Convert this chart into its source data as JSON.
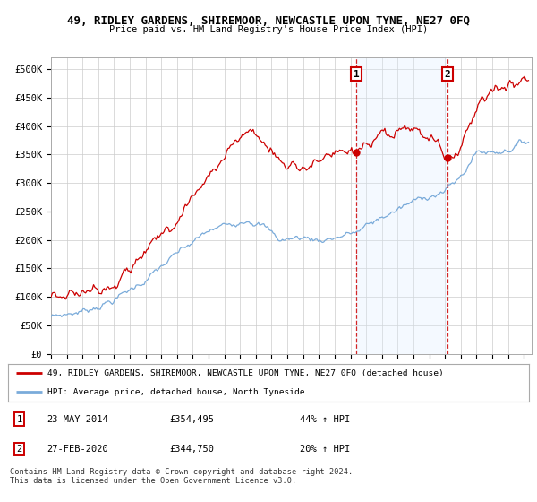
{
  "title_line1": "49, RIDLEY GARDENS, SHIREMOOR, NEWCASTLE UPON TYNE, NE27 0FQ",
  "title_line2": "Price paid vs. HM Land Registry's House Price Index (HPI)",
  "ylabel_ticks": [
    "£0",
    "£50K",
    "£100K",
    "£150K",
    "£200K",
    "£250K",
    "£300K",
    "£350K",
    "£400K",
    "£450K",
    "£500K"
  ],
  "ytick_values": [
    0,
    50000,
    100000,
    150000,
    200000,
    250000,
    300000,
    350000,
    400000,
    450000,
    500000
  ],
  "ylim": [
    0,
    520000
  ],
  "xlim_start": 1995.0,
  "xlim_end": 2025.5,
  "red_line_color": "#cc0000",
  "blue_line_color": "#7aabda",
  "annotation_color": "#cc0000",
  "shaded_region_color": "#ddeeff",
  "marker1_date": 2014.38,
  "marker2_date": 2020.16,
  "marker1_value": 354495,
  "marker2_value": 344750,
  "legend_entry1": "49, RIDLEY GARDENS, SHIREMOOR, NEWCASTLE UPON TYNE, NE27 0FQ (detached house)",
  "legend_entry2": "HPI: Average price, detached house, North Tyneside",
  "table_row1_num": "1",
  "table_row1_date": "23-MAY-2014",
  "table_row1_price": "£354,495",
  "table_row1_hpi": "44% ↑ HPI",
  "table_row2_num": "2",
  "table_row2_date": "27-FEB-2020",
  "table_row2_price": "£344,750",
  "table_row2_hpi": "20% ↑ HPI",
  "footer_text": "Contains HM Land Registry data © Crown copyright and database right 2024.\nThis data is licensed under the Open Government Licence v3.0.",
  "background_color": "#ffffff",
  "grid_color": "#cccccc",
  "n_points": 360,
  "year_start": 1995.0,
  "year_end": 2025.3
}
